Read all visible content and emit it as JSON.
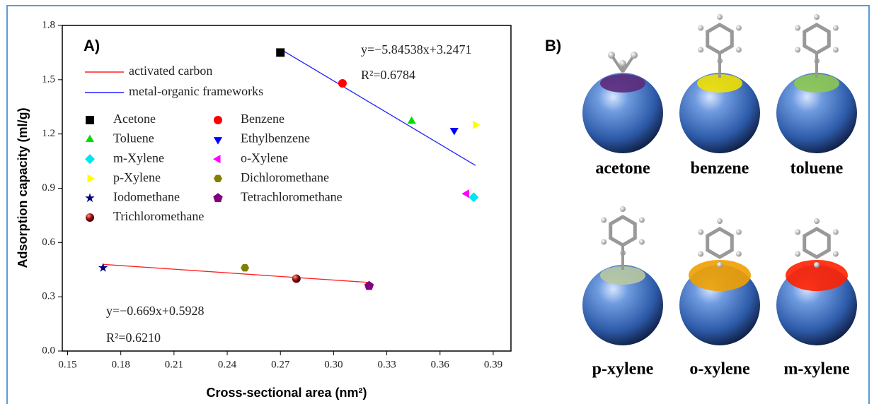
{
  "chart_data": {
    "type": "scatter",
    "panel_label": "A)",
    "x_label": "Cross-sectional area (nm²)",
    "y_label": "Adsorption capacity (ml/g)",
    "xlim": [
      0.147,
      0.4
    ],
    "ylim": [
      0,
      1.8
    ],
    "xticks": [
      0.15,
      0.18,
      0.21,
      0.24,
      0.27,
      {
        "value": 0.3,
        "label": "0.30"
      },
      0.33,
      0.36,
      0.39
    ],
    "yticks": [
      {
        "value": 0,
        "label": "0.0"
      },
      0.3,
      0.6,
      0.9,
      1.2,
      1.5,
      1.8
    ],
    "fit_lines": [
      {
        "name": "activated carbon",
        "color": "#ff2020",
        "x": [
          0.17,
          0.32
        ],
        "values": [
          0.479,
          0.379
        ],
        "equation": "y=−0.669x+0.5928",
        "r2": "R²=0.6210"
      },
      {
        "name": "metal-organic frameworks",
        "color": "#2020ff",
        "x": [
          0.27,
          0.38
        ],
        "values": [
          1.669,
          1.026
        ],
        "equation": "y=−5.84538x+3.2471",
        "r2": "R²=0.6784"
      }
    ],
    "series": [
      {
        "name": "Acetone",
        "color": "#000000",
        "marker": "square",
        "x": [
          0.27
        ],
        "values": [
          1.65
        ]
      },
      {
        "name": "Benzene",
        "color": "#ff0000",
        "marker": "circle",
        "x": [
          0.305
        ],
        "values": [
          1.48
        ]
      },
      {
        "name": "Toluene",
        "color": "#00e000",
        "marker": "triangle-up",
        "x": [
          0.344
        ],
        "values": [
          1.27
        ]
      },
      {
        "name": "Ethylbenzene",
        "color": "#0000ff",
        "marker": "triangle-down",
        "x": [
          0.368
        ],
        "values": [
          1.22
        ]
      },
      {
        "name": "m-Xylene",
        "color": "#00e5ee",
        "marker": "diamond",
        "x": [
          0.379
        ],
        "values": [
          0.85
        ]
      },
      {
        "name": "o-Xylene",
        "color": "#ff00ff",
        "marker": "triangle-left",
        "x": [
          0.375
        ],
        "values": [
          0.87
        ]
      },
      {
        "name": "p-Xylene",
        "color": "#ffff00",
        "marker": "triangle-right",
        "x": [
          0.38
        ],
        "values": [
          1.25
        ]
      },
      {
        "name": "Dichloromethane",
        "color": "#808000",
        "marker": "hexagon",
        "x": [
          0.25
        ],
        "values": [
          0.46
        ]
      },
      {
        "name": "Iodomethane",
        "color": "#000080",
        "marker": "star",
        "x": [
          0.17
        ],
        "values": [
          0.46
        ]
      },
      {
        "name": "Tetrachloromethane",
        "color": "#800080",
        "marker": "pentagon",
        "x": [
          0.32
        ],
        "values": [
          0.36
        ]
      },
      {
        "name": "Trichloromethane",
        "color": "#8b0000",
        "marker": "sphere",
        "x": [
          0.279
        ],
        "values": [
          0.4
        ]
      }
    ]
  },
  "panel_b": {
    "label": "B)",
    "molecules": [
      "acetone",
      "benzene",
      "toluene",
      "p-xylene",
      "o-xylene",
      "m-xylene"
    ]
  }
}
